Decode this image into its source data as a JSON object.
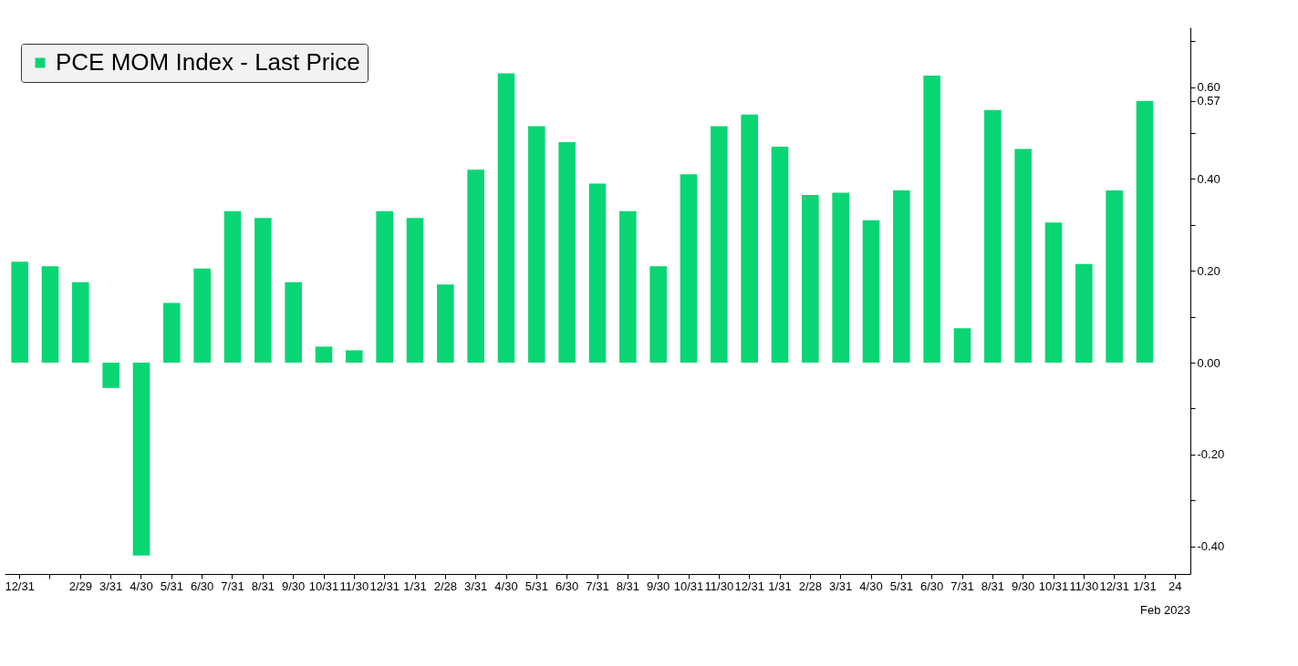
{
  "chart_data": {
    "type": "bar",
    "categories": [
      "12/31",
      null,
      "2/29",
      "3/31",
      "4/30",
      "5/31",
      "6/30",
      "7/31",
      "8/31",
      "9/30",
      "10/31",
      "11/30",
      "12/31",
      "1/31",
      "2/28",
      "3/31",
      "4/30",
      "5/31",
      "6/30",
      "7/31",
      "8/31",
      "9/30",
      "10/31",
      "11/30",
      "12/31",
      "1/31",
      "2/28",
      "3/31",
      "4/30",
      "5/31",
      "6/30",
      "7/31",
      "8/31",
      "9/30",
      "10/31",
      "11/30",
      "12/31",
      "1/31",
      "24"
    ],
    "series": [
      {
        "name": "PCE MOM Index - Last Price",
        "color": "#0ad574",
        "values": [
          0.22,
          0.21,
          0.175,
          -0.055,
          -0.42,
          0.13,
          0.205,
          0.33,
          0.315,
          0.175,
          0.035,
          0.027,
          0.33,
          0.315,
          0.17,
          0.42,
          0.63,
          0.515,
          0.48,
          0.39,
          0.33,
          0.21,
          0.41,
          0.515,
          0.54,
          0.47,
          0.365,
          0.37,
          0.31,
          0.375,
          0.625,
          0.075,
          0.55,
          0.465,
          0.305,
          0.215,
          0.375,
          0.57,
          null
        ]
      }
    ],
    "ylim": [
      -0.46,
      0.73
    ],
    "yticks": [
      {
        "value": -0.4,
        "label": "-0.40"
      },
      {
        "value": -0.3,
        "label": null
      },
      {
        "value": -0.2,
        "label": "-0.20"
      },
      {
        "value": -0.1,
        "label": null
      },
      {
        "value": 0,
        "label": "0.00"
      },
      {
        "value": 0.1,
        "label": null
      },
      {
        "value": 0.2,
        "label": "0.20"
      },
      {
        "value": 0.3,
        "label": null
      },
      {
        "value": 0.4,
        "label": "0.40"
      },
      {
        "value": 0.5,
        "label": null
      },
      {
        "value": 0.6,
        "label": "0.60"
      },
      {
        "value": 0.7,
        "label": null
      },
      {
        "value": 0.57,
        "label": "0.57"
      }
    ],
    "legend": "top left",
    "grid": false,
    "annotations": [
      "Feb 2023"
    ]
  }
}
